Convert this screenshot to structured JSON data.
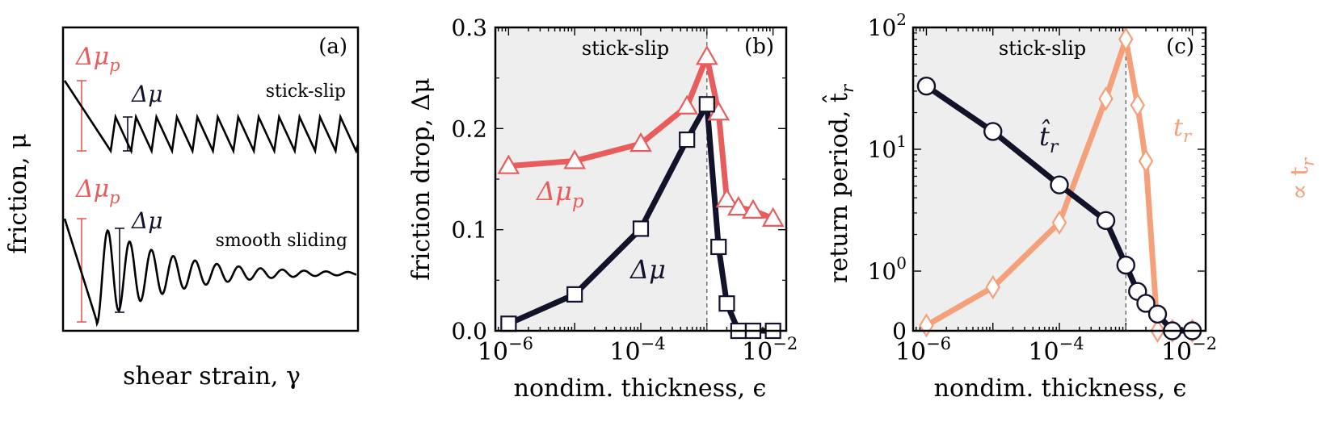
{
  "colors": {
    "black": "#12122a",
    "red": "#e85c5c",
    "orange": "#f4a07a",
    "shade": "#eeeeee",
    "grid": "#555555"
  },
  "panel_a": {
    "tag": "(a)",
    "ylabel": "friction, μ",
    "xlabel": "shear strain, γ",
    "top_label": "stick-slip",
    "bottom_label": "smooth sliding",
    "dmu_p": "Δμ",
    "dmu_p_sub": "p",
    "dmu": "Δμ"
  },
  "panel_b": {
    "tag": "(b)",
    "region_label": "stick-slip",
    "ylabel": "friction drop, Δμ",
    "xlabel": "nondim. thickness, ϵ",
    "series_p_label": "Δμ",
    "series_p_sub": "p",
    "series_label": "Δμ"
  },
  "panel_c": {
    "tag": "(c)",
    "region_label": "stick-slip",
    "ylabel": "return period, t̂",
    "ylabel_sub": "r",
    "right_label": "∝ t",
    "right_label_sub": "r",
    "xlabel": "nondim. thickness, ϵ",
    "series_hat_label": "t̂",
    "series_hat_sub": "r",
    "series_t_label": "t",
    "series_t_sub": "r"
  },
  "chart_data": [
    {
      "type": "line",
      "panel": "(a)",
      "xlabel": "shear strain, γ",
      "ylabel": "friction, μ",
      "series": [
        {
          "name": "stick-slip",
          "kind": "sawtooth"
        },
        {
          "name": "smooth sliding",
          "kind": "damped oscillation"
        }
      ],
      "annotations": [
        "Δμp",
        "Δμ"
      ]
    },
    {
      "type": "line",
      "panel": "(b)",
      "xscale": "log",
      "xlim": [
        1e-06,
        0.01
      ],
      "ylim": [
        0,
        0.3
      ],
      "xticks": [
        "10^-6",
        "10^-4",
        "10^-2"
      ],
      "yticks": [
        "0.0",
        "0.1",
        "0.2",
        "0.3"
      ],
      "xlabel": "nondim. thickness, ϵ",
      "ylabel": "friction drop, Δμ",
      "shaded_region": {
        "x": [
          1e-06,
          0.001
        ],
        "label": "stick-slip"
      },
      "vline": 0.001,
      "series": [
        {
          "name": "Δμp",
          "marker": "triangle",
          "x": [
            1e-06,
            1e-05,
            0.0001,
            0.0005,
            0.001,
            0.0015,
            0.002,
            0.003,
            0.005,
            0.01
          ],
          "y": [
            0.163,
            0.168,
            0.185,
            0.222,
            0.271,
            0.216,
            0.13,
            0.122,
            0.119,
            0.111
          ]
        },
        {
          "name": "Δμ",
          "marker": "square",
          "x": [
            1e-06,
            1e-05,
            0.0001,
            0.0005,
            0.001,
            0.0015,
            0.002,
            0.003,
            0.005,
            0.01
          ],
          "y": [
            0.007,
            0.036,
            0.101,
            0.189,
            0.224,
            0.083,
            0.027,
            0.0,
            0.0,
            0.0
          ]
        }
      ]
    },
    {
      "type": "line",
      "panel": "(c)",
      "xscale": "log",
      "yscale": "symlog",
      "xlim": [
        1e-06,
        0.01
      ],
      "ylim": [
        0,
        100
      ],
      "xticks": [
        "10^-6",
        "10^-4",
        "10^-2"
      ],
      "yticks": [
        "0",
        "10^0",
        "10^1",
        "10^2"
      ],
      "xlabel": "nondim. thickness, ϵ",
      "ylabel": "return period, t̂r",
      "right_ylabel": "∝ tr",
      "shaded_region": {
        "x": [
          1e-06,
          0.001
        ],
        "label": "stick-slip"
      },
      "vline": 0.001,
      "series": [
        {
          "name": "t̂r",
          "marker": "circle",
          "x": [
            1e-06,
            1e-05,
            0.0001,
            0.0005,
            0.001,
            0.0015,
            0.002,
            0.003,
            0.005,
            0.01
          ],
          "y": [
            33,
            14,
            5.1,
            2.6,
            1.12,
            0.66,
            0.46,
            0.28,
            0.0,
            0.0
          ]
        },
        {
          "name": "tr",
          "marker": "diamond",
          "x": [
            1e-06,
            1e-05,
            0.0001,
            0.0005,
            0.001,
            0.0015,
            0.002,
            0.003,
            0.005,
            0.01
          ],
          "y": [
            0.09,
            0.73,
            2.5,
            26,
            80,
            23,
            8,
            0.0,
            0.0,
            0.0
          ]
        }
      ]
    }
  ]
}
